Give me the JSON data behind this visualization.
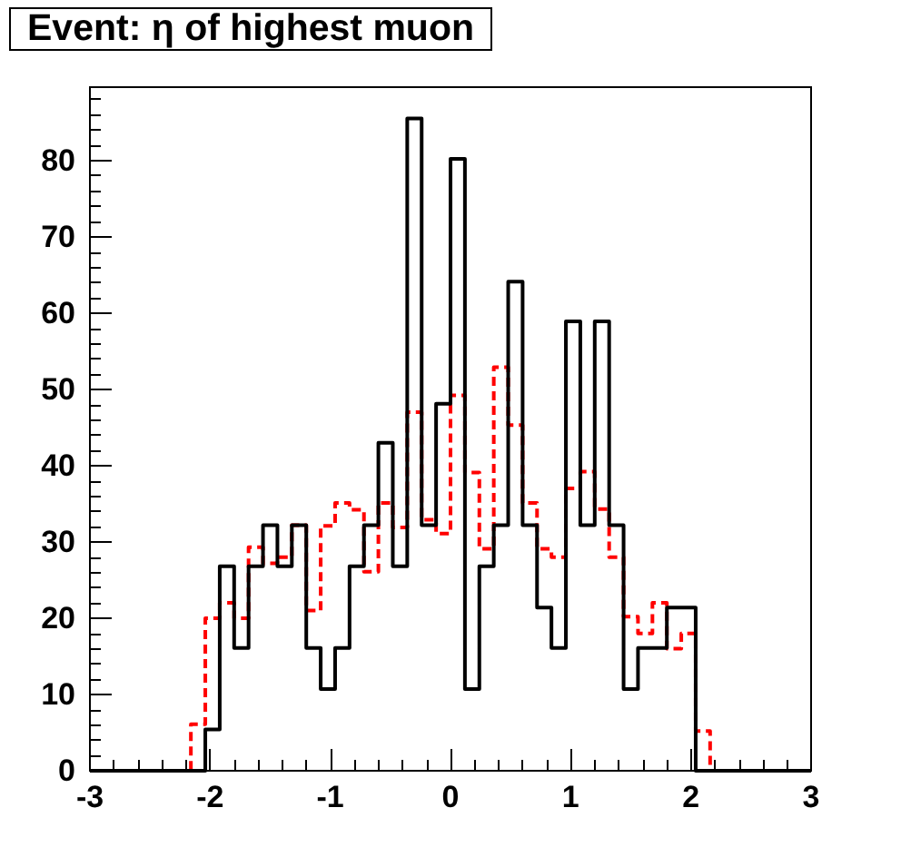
{
  "chart_data": {
    "type": "histogram",
    "title": "Event: η of highest muon",
    "bins": [
      -3,
      -2.88,
      -2.76,
      -2.64,
      -2.52,
      -2.4,
      -2.28,
      -2.16,
      -2.04,
      -1.92,
      -1.8,
      -1.68,
      -1.56,
      -1.44,
      -1.32,
      -1.2,
      -1.08,
      -0.96,
      -0.84,
      -0.72,
      -0.6,
      -0.48,
      -0.36,
      -0.24,
      -0.12,
      0,
      0.12,
      0.24,
      0.36,
      0.48,
      0.6,
      0.72,
      0.84,
      0.96,
      1.08,
      1.2,
      1.32,
      1.44,
      1.56,
      1.68,
      1.8,
      1.92,
      2.04,
      2.16,
      2.28,
      2.4,
      2.52,
      2.64,
      2.76,
      2.88,
      3
    ],
    "series": [
      {
        "color": "#000000",
        "line_style": "solid",
        "values": [
          0,
          0,
          0,
          0,
          0,
          0,
          0,
          0,
          5.4,
          26.8,
          16.1,
          26.8,
          32.2,
          26.8,
          32.2,
          16.1,
          10.7,
          16.1,
          26.8,
          32.2,
          43.0,
          26.8,
          85.5,
          32.2,
          48.1,
          80.2,
          10.7,
          26.8,
          32.2,
          64.1,
          32.2,
          21.4,
          16.1,
          58.9,
          32.2,
          58.9,
          32.2,
          10.7,
          16.1,
          16.1,
          21.4,
          21.4,
          0,
          0,
          0,
          0,
          0,
          0,
          0,
          0
        ]
      },
      {
        "color": "#ff0000",
        "line_style": "dashed",
        "values": [
          0,
          0,
          0,
          0,
          0,
          0,
          0,
          6.1,
          20.0,
          22.0,
          20.0,
          29.3,
          27.2,
          28.0,
          32.2,
          21.0,
          32.1,
          35.1,
          34.2,
          26.1,
          35.1,
          31.9,
          47.0,
          32.9,
          31.1,
          49.2,
          39.1,
          29.1,
          52.9,
          45.3,
          35.1,
          29.1,
          28.0,
          37.0,
          39.2,
          34.3,
          28.0,
          20.2,
          18.0,
          22.0,
          16.0,
          18.0,
          5.2,
          0,
          0,
          0,
          0,
          0,
          0,
          0
        ]
      }
    ],
    "xlim": [
      -3,
      3
    ],
    "xticks": [
      -3,
      -2,
      -1,
      0,
      1,
      2,
      3
    ],
    "ylim": [
      0,
      89.6
    ],
    "yticks": [
      0,
      10,
      20,
      30,
      40,
      50,
      60,
      70,
      80
    ]
  }
}
